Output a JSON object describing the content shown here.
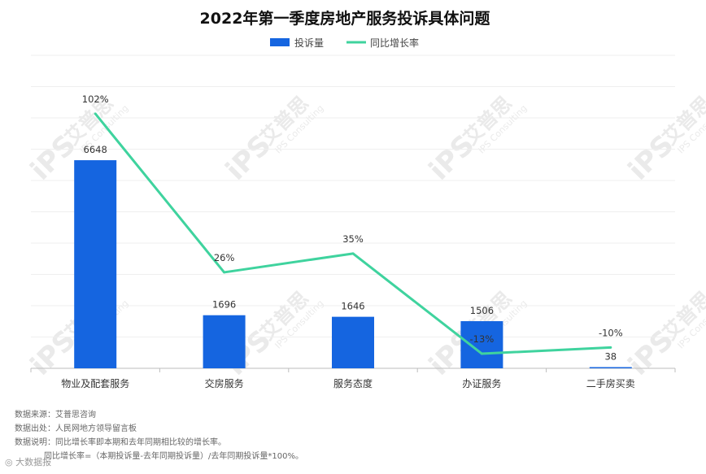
{
  "watermark": {
    "logo": "iPS",
    "cn": "艾普思",
    "en": "IPS Consulting"
  },
  "chart_data": {
    "type": "bar",
    "title": "2022年第一季度房地产服务投诉具体问题",
    "categories": [
      "物业及配套服务",
      "交房服务",
      "服务态度",
      "办证服务",
      "二手房买卖"
    ],
    "series": [
      {
        "name": "投诉量",
        "type": "bar",
        "color": "#1565e0",
        "values": [
          6648,
          1696,
          1646,
          1506,
          38
        ],
        "labels": [
          "6648",
          "1696",
          "1646",
          "1506",
          "38"
        ]
      },
      {
        "name": "同比增长率",
        "type": "line",
        "color": "#3fd39e",
        "values": [
          102,
          26,
          35,
          -13,
          -10
        ],
        "labels": [
          "102%",
          "26%",
          "35%",
          "-13%",
          "-10%"
        ]
      }
    ],
    "legend_position": "top-center",
    "grid": true,
    "bar_axis_range": [
      0,
      10000
    ],
    "line_axis_range": [
      -20,
      130
    ]
  },
  "notes": [
    "数据来源：艾普思咨询",
    "数据出处：人民网地方领导留言板",
    "数据说明：同比增长率即本期和去年同期相比较的增长率。",
    "同比增长率=（本期投诉量-去年同期投诉量）/去年同期投诉量*100%。"
  ],
  "brand": "大数据报"
}
